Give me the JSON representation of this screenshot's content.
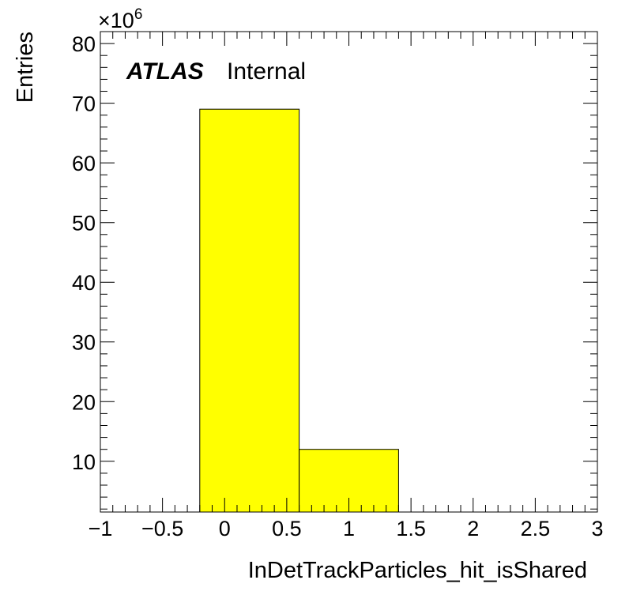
{
  "chart_data": {
    "type": "bar",
    "histogram": true,
    "bins": [
      {
        "x_low": -0.2,
        "x_high": 0.6,
        "value": 69
      },
      {
        "x_low": 0.6,
        "x_high": 1.4,
        "value": 12
      }
    ],
    "value_multiplier_label": "×10",
    "value_multiplier_exponent": "6",
    "xlabel": "InDetTrackParticles_hit_isShared",
    "ylabel": "Entries",
    "xlim": [
      -1,
      3
    ],
    "ylim": [
      1.5,
      82
    ],
    "x_ticks": [
      {
        "value": -1,
        "label": "−1"
      },
      {
        "value": -0.5,
        "label": "−0.5"
      },
      {
        "value": 0,
        "label": "0"
      },
      {
        "value": 0.5,
        "label": "0.5"
      },
      {
        "value": 1,
        "label": "1"
      },
      {
        "value": 1.5,
        "label": "1.5"
      },
      {
        "value": 2,
        "label": "2"
      },
      {
        "value": 2.5,
        "label": "2.5"
      },
      {
        "value": 3,
        "label": "3"
      }
    ],
    "y_ticks": [
      {
        "value": 10,
        "label": "10"
      },
      {
        "value": 20,
        "label": "20"
      },
      {
        "value": 30,
        "label": "30"
      },
      {
        "value": 40,
        "label": "40"
      },
      {
        "value": 50,
        "label": "50"
      },
      {
        "value": 60,
        "label": "60"
      },
      {
        "value": 70,
        "label": "70"
      },
      {
        "value": 80,
        "label": "80"
      }
    ],
    "fill_color": "#ffff00",
    "edge_color": "#000000",
    "grid": false,
    "annotation": {
      "experiment": "ATLAS",
      "status": "Internal"
    }
  }
}
